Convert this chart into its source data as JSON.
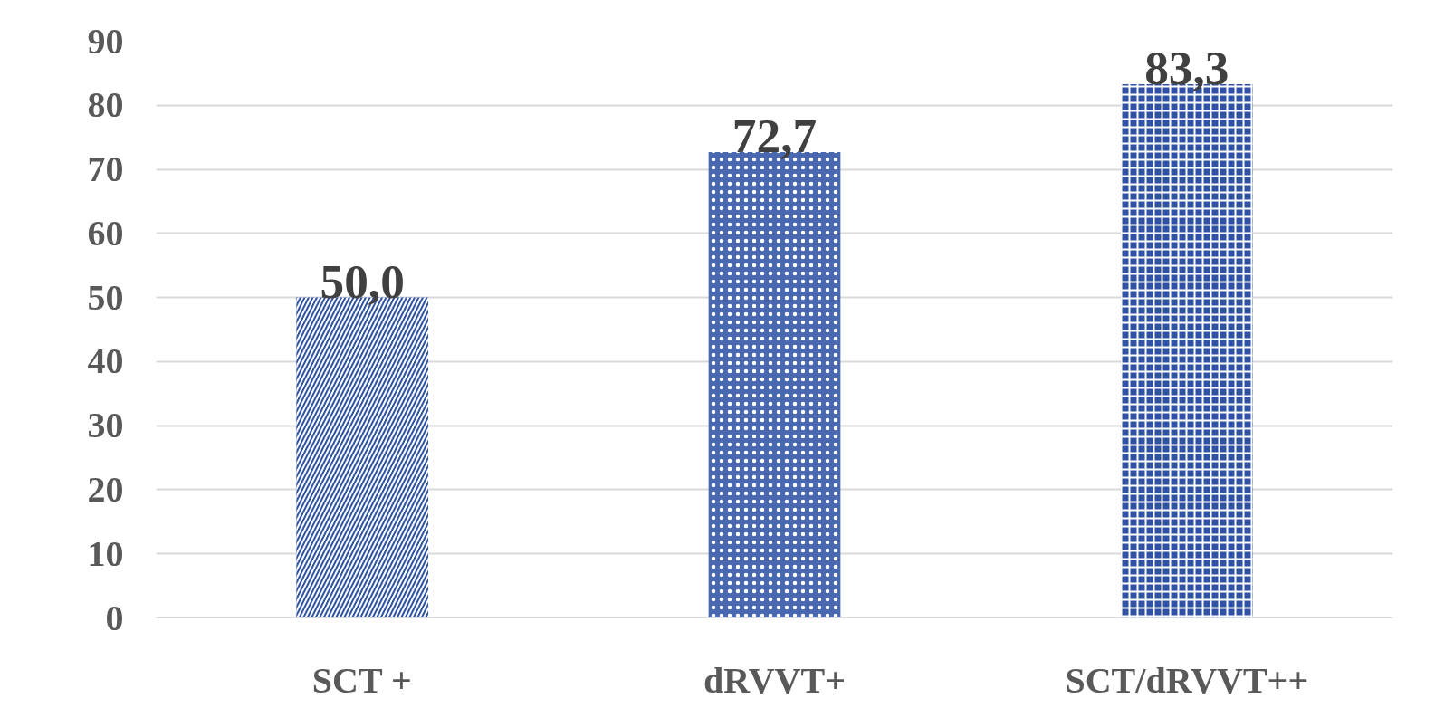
{
  "chart_data": {
    "type": "bar",
    "categories": [
      "SCT +",
      "dRVVT+",
      "SCT/dRVVT++"
    ],
    "values": [
      50.0,
      72.7,
      83.3
    ],
    "value_labels": [
      "50,0",
      "72,7",
      "83,3"
    ],
    "colors": [
      "#2f52a5",
      "#4a68b0",
      "#2f52a5"
    ],
    "ylim": [
      0,
      90
    ],
    "yticks": [
      0,
      10,
      20,
      30,
      40,
      50,
      60,
      70,
      80,
      90
    ],
    "grid": "y"
  }
}
